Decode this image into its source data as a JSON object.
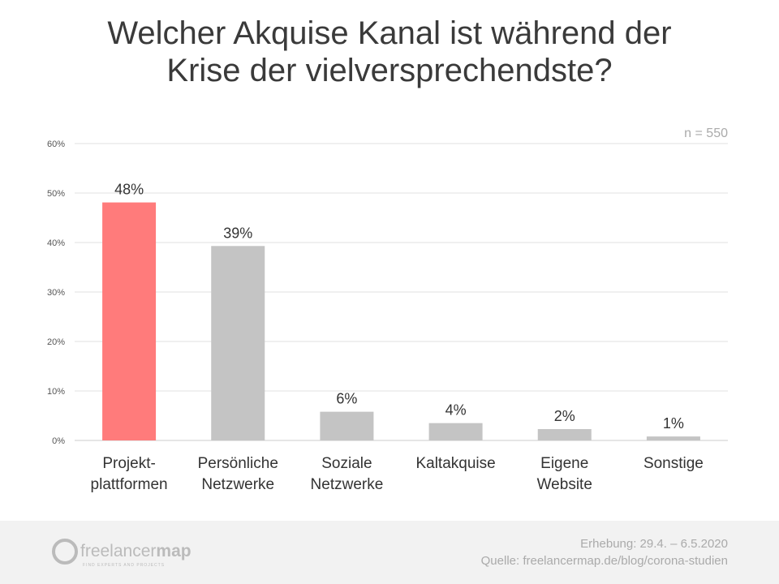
{
  "chart_data": {
    "type": "bar",
    "title_lines": [
      "Welcher Akquise Kanal ist während der",
      "Krise der vielversprechendste?"
    ],
    "categories": [
      [
        "Projekt-",
        "plattformen"
      ],
      [
        "Persönliche",
        "Netzwerke"
      ],
      [
        "Soziale",
        "Netzwerke"
      ],
      [
        "Kaltakquise"
      ],
      [
        "Eigene",
        "Website"
      ],
      [
        "Sonstige"
      ]
    ],
    "values": [
      48.1,
      39.3,
      5.8,
      3.5,
      2.3,
      0.8
    ],
    "data_labels": [
      "48%",
      "39%",
      "6%",
      "4%",
      "2%",
      "1%"
    ],
    "colors": [
      "#ff7b7b",
      "#c4c4c4",
      "#c4c4c4",
      "#c4c4c4",
      "#c4c4c4",
      "#c4c4c4"
    ],
    "yticks": [
      0,
      10,
      20,
      30,
      40,
      50,
      60
    ],
    "ytick_labels": [
      "0%",
      "10%",
      "20%",
      "30%",
      "40%",
      "50%",
      "60%"
    ],
    "ylim": [
      0,
      60
    ],
    "grid": true,
    "annotation": "n = 550"
  },
  "footer": {
    "survey": "Erhebung: 29.4. – 6.5.2020",
    "source": "Quelle: freelancermap.de/blog/corona-studien",
    "logo_light": "freelancer",
    "logo_bold": "map",
    "logo_tagline": "FIND EXPERTS AND PROJECTS"
  }
}
